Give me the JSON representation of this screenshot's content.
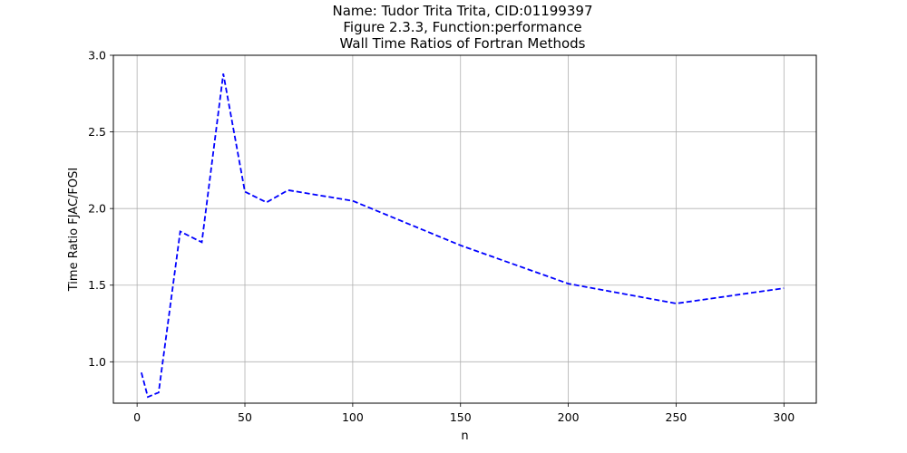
{
  "chart_data": {
    "type": "line",
    "title": [
      "Name: Tudor Trita Trita, CID:01199397",
      "Figure 2.3.3, Function:performance",
      "Wall Time Ratios of Fortran Methods"
    ],
    "xlabel": "n",
    "ylabel": "Time Ratio FJAC/FOSI",
    "xlim": [
      -11,
      315
    ],
    "ylim": [
      0.73,
      3.0
    ],
    "xticks": [
      0,
      50,
      100,
      150,
      200,
      250,
      300
    ],
    "yticks": [
      1.0,
      1.5,
      2.0,
      2.5,
      3.0
    ],
    "xtick_labels": [
      "0",
      "50",
      "100",
      "150",
      "200",
      "250",
      "300"
    ],
    "ytick_labels": [
      "1.0",
      "1.5",
      "2.0",
      "2.5",
      "3.0"
    ],
    "grid": true,
    "series": [
      {
        "color": "#0000ff",
        "line_style": "dashed",
        "x": [
          2,
          5,
          10,
          20,
          30,
          40,
          50,
          60,
          70,
          100,
          150,
          200,
          250,
          300
        ],
        "y": [
          0.93,
          0.77,
          0.8,
          1.85,
          1.78,
          2.88,
          2.11,
          2.04,
          2.12,
          2.05,
          1.76,
          1.51,
          1.38,
          1.48
        ]
      }
    ]
  }
}
